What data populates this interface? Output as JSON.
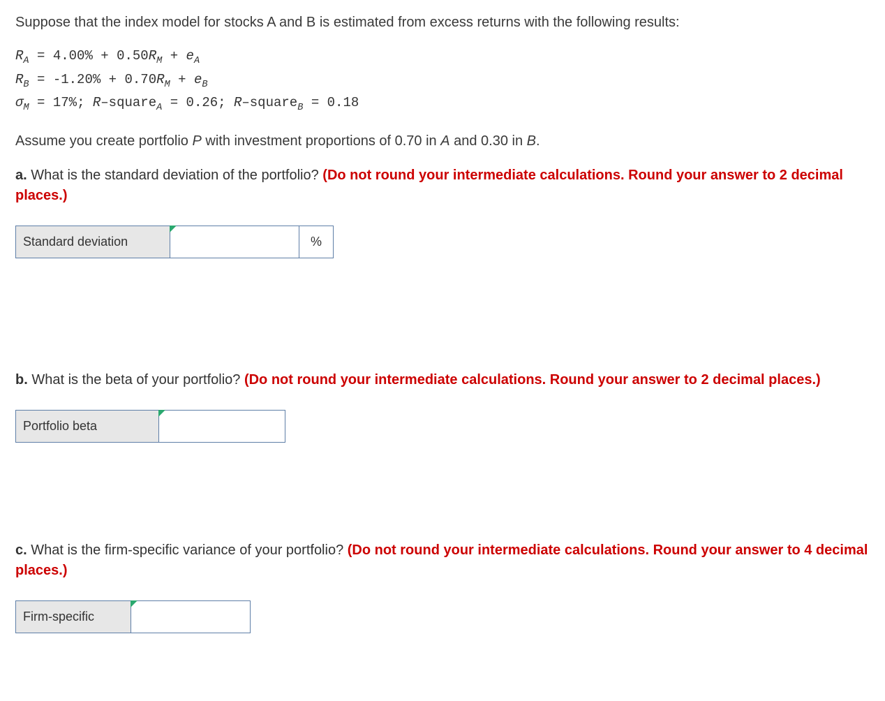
{
  "intro": "Suppose that the index model for stocks A and B is estimated from excess returns with the following results:",
  "model": {
    "ra": {
      "alpha": "4.00%",
      "beta": "0.50"
    },
    "rb": {
      "alpha": "-1.20%",
      "beta": "0.70"
    },
    "sigma_m": "17%",
    "rsq_a": "0.26",
    "rsq_b": "0.18"
  },
  "portfolio_line_pre": "Assume you create portfolio ",
  "portfolio_symbol": "P",
  "portfolio_line_mid": " with investment proportions of 0.70 in ",
  "portfolio_line_mid2": " and 0.30 in ",
  "sym_A": "A",
  "sym_B": "B",
  "period": ".",
  "qa": {
    "label": "a.",
    "text": " What is the standard deviation of the portfolio? ",
    "hint": "(Do not round your intermediate calculations. Round your answer to 2 decimal places.)",
    "row_label": "Standard deviation",
    "unit": "%",
    "value": ""
  },
  "qb": {
    "label": "b.",
    "text": " What is the beta of your portfolio? ",
    "hint": "(Do not round your intermediate calculations. Round your answer to 2 decimal places.)",
    "row_label": "Portfolio beta",
    "value": ""
  },
  "qc": {
    "label": "c.",
    "text": " What is the firm-specific variance of your portfolio? ",
    "hint": "(Do not round your intermediate calculations. Round your answer to 4 decimal places.)",
    "row_label": "Firm-specific",
    "value": ""
  },
  "colors": {
    "hint": "#cc0000",
    "border": "#5e7ea7",
    "label_bg": "#e7e7e7",
    "marker": "#2aa86f"
  }
}
